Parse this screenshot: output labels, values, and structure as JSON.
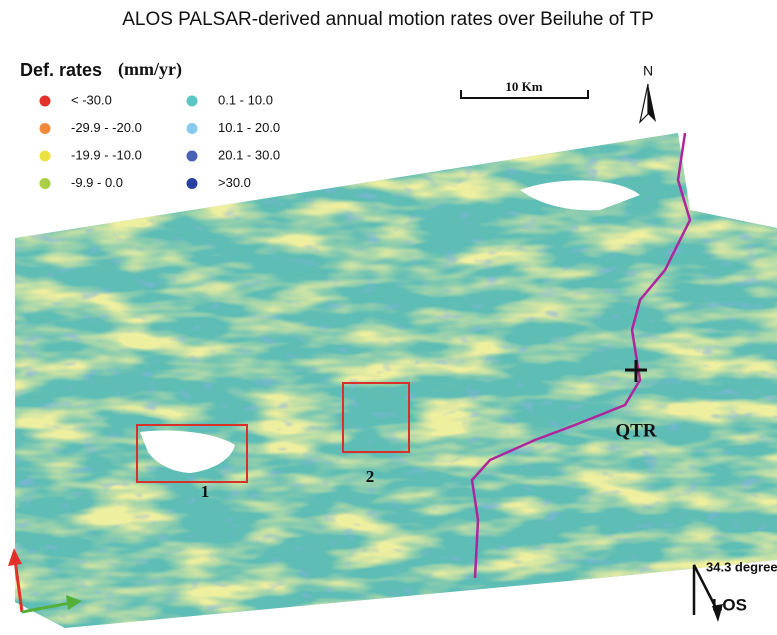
{
  "title": "ALOS PALSAR-derived annual motion rates over Beiluhe of TP",
  "legend": {
    "title": "Def. rates",
    "unit": "(mm/yr)",
    "items": [
      {
        "label": "< -30.0",
        "color": "#e2312b"
      },
      {
        "label": "-29.9 - -20.0",
        "color": "#f08a3a"
      },
      {
        "label": "-19.9 - -10.0",
        "color": "#ece244"
      },
      {
        "label": "-9.9 - 0.0",
        "color": "#a8cf45"
      },
      {
        "label": "0.1 - 10.0",
        "color": "#5cc6c4"
      },
      {
        "label": "10.1 - 20.0",
        "color": "#86caef"
      },
      {
        "label": "20.1 - 30.0",
        "color": "#4a62b4"
      },
      {
        "label": ">30.0",
        "color": "#2741a0"
      }
    ]
  },
  "scale_bar": {
    "label": "10 Km"
  },
  "north_arrow": {
    "label": "N"
  },
  "annotations": {
    "site": "QTR",
    "box_1": "1",
    "box_2": "2"
  },
  "los": {
    "angle": "34.3 degree",
    "label": "LOS"
  }
}
